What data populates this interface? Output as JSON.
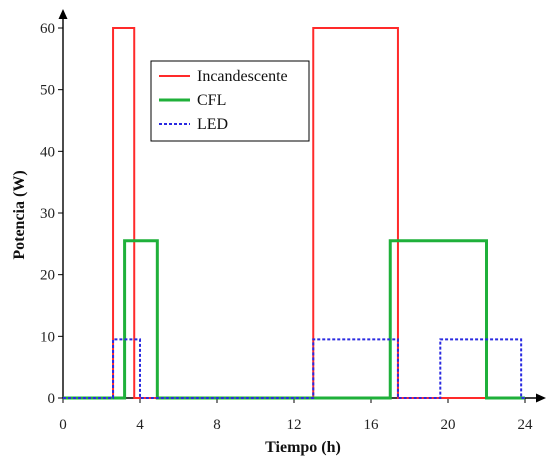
{
  "chart_data": {
    "type": "line",
    "xlabel": "Tiempo (h)",
    "ylabel": "Potencia (W)",
    "xlim": [
      0,
      24
    ],
    "ylim": [
      0,
      60
    ],
    "xticks": [
      0,
      4,
      8,
      12,
      16,
      20,
      24
    ],
    "yticks": [
      0,
      10,
      20,
      30,
      40,
      50,
      60
    ],
    "xtick_labels": [
      "0",
      "4",
      "8",
      "12",
      "16",
      "20",
      "24"
    ],
    "ytick_labels": [
      "0",
      "10",
      "20",
      "30",
      "40",
      "50",
      "60"
    ],
    "grid": false,
    "legend_position": "top-center",
    "series": [
      {
        "name": "Incandescente",
        "color": "#ff2a2a",
        "style": "solid",
        "x": [
          0,
          2.6,
          2.6,
          3.7,
          3.7,
          13.0,
          13.0,
          17.4,
          17.4,
          24
        ],
        "y": [
          0,
          0,
          60,
          60,
          0,
          0,
          60,
          60,
          0,
          0
        ]
      },
      {
        "name": "CFL",
        "color": "#1fb03a",
        "style": "solid",
        "x": [
          0,
          3.2,
          3.2,
          4.9,
          4.9,
          17.0,
          17.0,
          22.0,
          22.0,
          24
        ],
        "y": [
          0,
          0,
          25.5,
          25.5,
          0,
          0,
          25.5,
          25.5,
          0,
          0
        ]
      },
      {
        "name": "LED",
        "color": "#2a2ae0",
        "style": "dotted",
        "x": [
          0,
          2.6,
          2.6,
          4.0,
          4.0,
          13.0,
          13.0,
          17.4,
          17.4,
          19.6,
          19.6,
          23.8,
          23.8,
          24
        ],
        "y": [
          0,
          0,
          9.5,
          9.5,
          0,
          0,
          9.5,
          9.5,
          0,
          0,
          9.5,
          9.5,
          0,
          0
        ]
      }
    ]
  }
}
